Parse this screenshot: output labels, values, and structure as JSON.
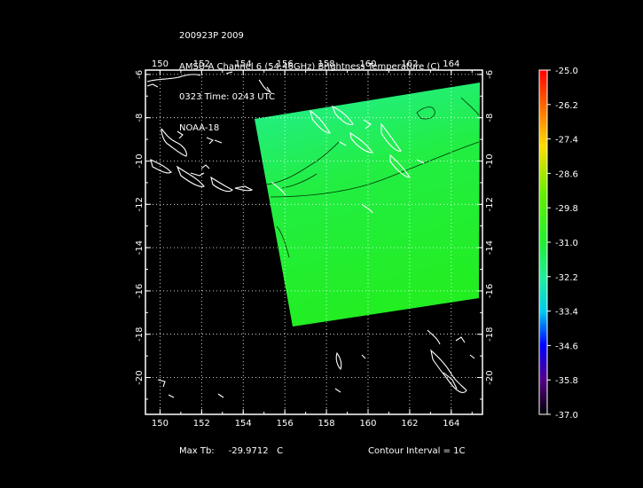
{
  "header": {
    "line1": "200923P 2009",
    "line2": "AMSU-A Channel 6 (54.46GHz) Brightness Temperature (C)",
    "line3": "0323 Time: 0243 UTC",
    "line4": "NOAA-18"
  },
  "map": {
    "lon_range": [
      149.3,
      165.5
    ],
    "lat_range": [
      -21.7,
      -5.8
    ],
    "lon_ticks": [
      "150",
      "152",
      "154",
      "156",
      "158",
      "160",
      "162",
      "164"
    ],
    "lat_ticks": [
      "-6",
      "-8",
      "-10",
      "-12",
      "-14",
      "-16",
      "-18",
      "-20"
    ],
    "swath_colors": {
      "upper": "#22ee99",
      "lower": "#22ee22"
    },
    "coastline_color": "#ffffff",
    "contour_color": "#003300"
  },
  "colorbar": {
    "labels": [
      "-25.0",
      "-26.2",
      "-27.4",
      "-28.6",
      "-29.8",
      "-31.0",
      "-32.2",
      "-33.4",
      "-34.6",
      "-35.8",
      "-37.0"
    ],
    "range": [
      -37.0,
      -25.0
    ]
  },
  "footer": {
    "max_tb_label": "Max Tb:",
    "max_tb_value": "-29.9712",
    "max_tb_unit": "C",
    "contour_interval": "Contour Interval = 1C"
  }
}
